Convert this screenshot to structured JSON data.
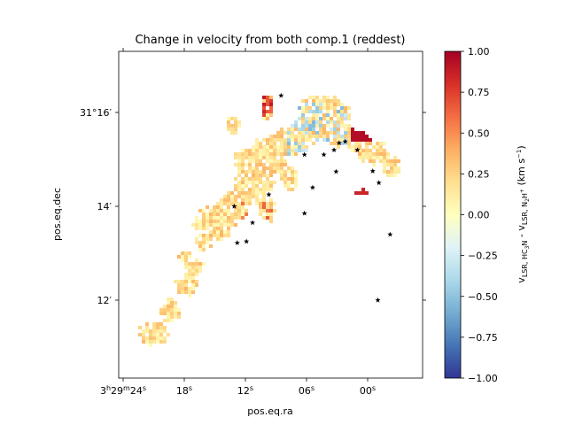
{
  "chart_data": {
    "type": "heatmap",
    "title": "Change in velocity from both comp.1 (reddest)",
    "xlabel": "pos.eq.ra",
    "ylabel": "pos.eq.dec",
    "x_ticks": [
      {
        "value": 24,
        "prefix": "3",
        "prefix_unit": "h",
        "mid": "29",
        "mid_unit": "m",
        "main": "24",
        "unit": "s"
      },
      {
        "value": 18,
        "main": "18",
        "unit": "s"
      },
      {
        "value": 12,
        "main": "12",
        "unit": "s"
      },
      {
        "value": 6,
        "main": "06",
        "unit": "s"
      },
      {
        "value": 0,
        "main": "00",
        "unit": "s"
      }
    ],
    "y_ticks": [
      {
        "value": 16,
        "label": "31°16′"
      },
      {
        "value": 14,
        "label": "14′"
      },
      {
        "value": 12,
        "label": "12′"
      }
    ],
    "colorbar": {
      "min": -1.0,
      "max": 1.0,
      "ticks": [
        "1.00",
        "0.75",
        "0.50",
        "0.25",
        "0.00",
        "−0.25",
        "−0.50",
        "−0.75",
        "−1.00"
      ],
      "label_main": "v",
      "label_sub1": "LSR, HC",
      "label_sub1b": "3",
      "label_sub1c": "N",
      "label_dash": " - v",
      "label_sub2": "LSR, N",
      "label_sub2b": "2",
      "label_sub2c": "H",
      "label_sup2": "+",
      "label_unit": " (km s",
      "label_unit_sup": "−1",
      "label_unit_end": ")",
      "colormap": "RdYlBu_r"
    },
    "stars": [
      {
        "ra": 8.5,
        "dec": 16.36
      },
      {
        "ra": 2.2,
        "dec": 15.38
      },
      {
        "ra": 3.3,
        "dec": 15.2
      },
      {
        "ra": 4.3,
        "dec": 15.1
      },
      {
        "ra": 2.8,
        "dec": 15.35
      },
      {
        "ra": 1.0,
        "dec": 15.2
      },
      {
        "ra": 3.1,
        "dec": 14.74
      },
      {
        "ra": 6.2,
        "dec": 15.1
      },
      {
        "ra": 5.4,
        "dec": 14.4
      },
      {
        "ra": -1.1,
        "dec": 14.5
      },
      {
        "ra": -0.5,
        "dec": 14.75
      },
      {
        "ra": 9.7,
        "dec": 14.25
      },
      {
        "ra": 13.1,
        "dec": 14.0
      },
      {
        "ra": 6.2,
        "dec": 13.85
      },
      {
        "ra": 11.3,
        "dec": 13.65
      },
      {
        "ra": 12.8,
        "dec": 13.22
      },
      {
        "ra": 11.9,
        "dec": 13.25
      },
      {
        "ra": -1.0,
        "dec": 12.0
      },
      {
        "ra": -2.2,
        "dec": 13.4
      }
    ]
  }
}
